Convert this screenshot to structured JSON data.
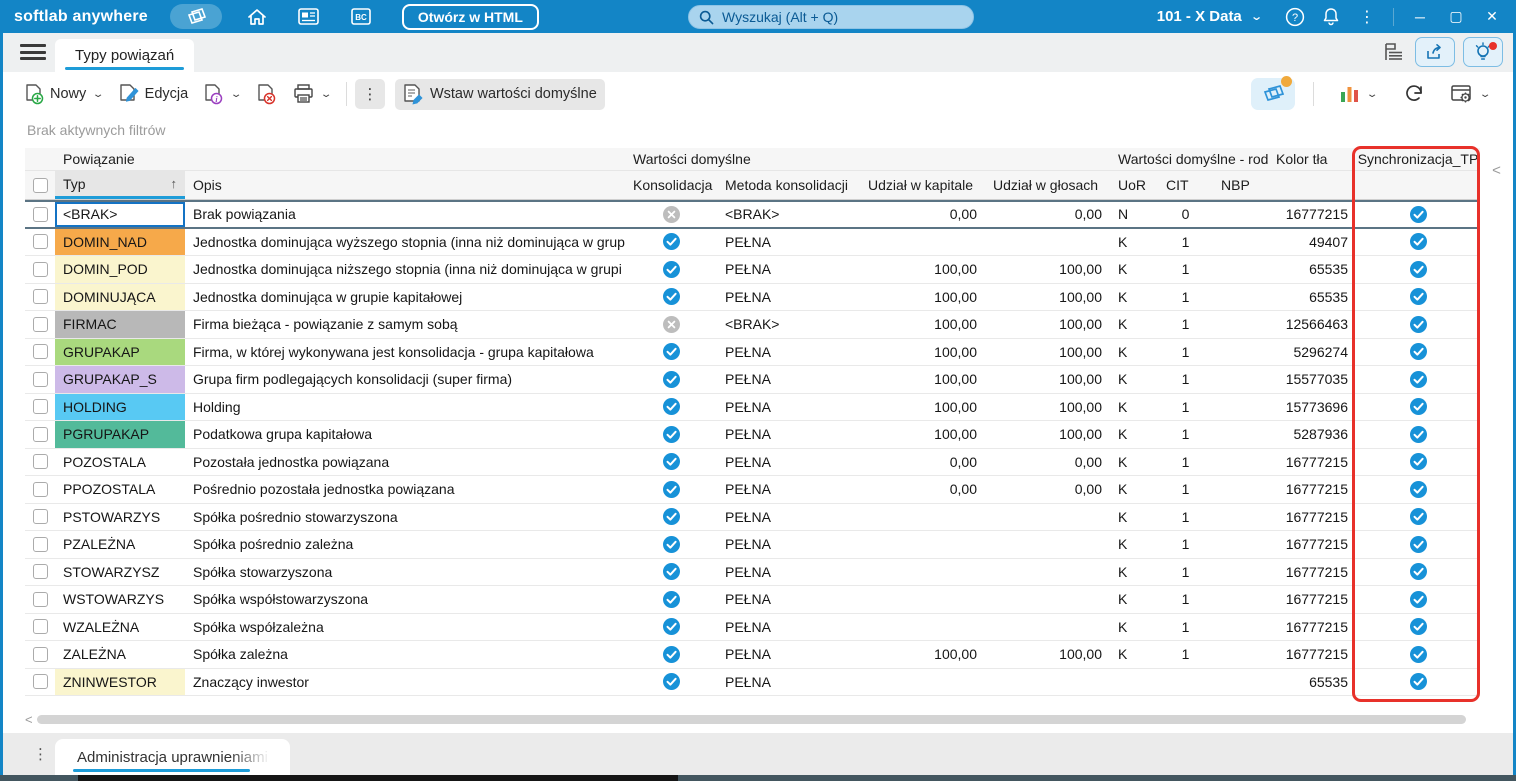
{
  "topbar": {
    "logo": "softlab anywhere",
    "open_in_html_label": "Otwórz w HTML",
    "search_placeholder": "Wyszukaj (Alt + Q)",
    "company_selector": "101 - X Data",
    "window_minimize": "─",
    "window_maximize": "▢",
    "window_close": "✕"
  },
  "tabbar": {
    "active_tab": "Typy powiązań"
  },
  "toolbar": {
    "new_label": "Nowy",
    "edit_label": "Edycja",
    "insert_defaults_label": "Wstaw wartości domyślne"
  },
  "filter_status": "Brak aktywnych filtrów",
  "colors": {
    "accent_blue": "#1385c6",
    "check_blue": "#1792d8",
    "cross_gray": "#bdbdbd",
    "annotation_red": "#e8312a",
    "tab_underline": "#1e9cd8"
  },
  "table": {
    "group_headers": {
      "powiazanie": "Powiązanie",
      "wartosci_domyslne": "Wartości domyślne",
      "wartosci_domyslne_rod": "Wartości domyślne - rod",
      "kolor_tla": "Kolor tła",
      "synchronizacja_tp": "Synchronizacja_TP"
    },
    "columns": {
      "typ": "Typ",
      "opis": "Opis",
      "konsolidacja": "Konsolidacja",
      "metoda": "Metoda konsolidacji",
      "udzial_kapital": "Udział w kapitale",
      "udzial_glosy": "Udział w głosach",
      "uor": "UoR",
      "cit": "CIT",
      "nbp": "NBP"
    },
    "sort_indicator": "↑",
    "rows": [
      {
        "typ": "<BRAK>",
        "typ_color": "#ffffff",
        "opis": "Brak powiązania",
        "konsolidacja": "crossed",
        "metoda": "<BRAK>",
        "udzial_kapital": "0,00",
        "udzial_glosy": "0,00",
        "uor": "N",
        "cit": "0",
        "nbp": "",
        "kolor_tla": "16777215",
        "synchronizacja": "checked",
        "selected": true
      },
      {
        "typ": "DOMIN_NAD",
        "typ_color": "#f6a94a",
        "opis": "Jednostka dominująca wyższego stopnia (inna niż dominująca w grup",
        "konsolidacja": "checked",
        "metoda": "PEŁNA",
        "udzial_kapital": "",
        "udzial_glosy": "",
        "uor": "K",
        "cit": "1",
        "nbp": "",
        "kolor_tla": "49407",
        "synchronizacja": "checked"
      },
      {
        "typ": "DOMIN_POD",
        "typ_color": "#faf5ce",
        "opis": "Jednostka dominująca niższego stopnia (inna niż dominująca w grupi",
        "konsolidacja": "checked",
        "metoda": "PEŁNA",
        "udzial_kapital": "100,00",
        "udzial_glosy": "100,00",
        "uor": "K",
        "cit": "1",
        "nbp": "",
        "kolor_tla": "65535",
        "synchronizacja": "checked"
      },
      {
        "typ": "DOMINUJĄCA",
        "typ_color": "#faf5ce",
        "opis": "Jednostka dominująca w grupie kapitałowej",
        "konsolidacja": "checked",
        "metoda": "PEŁNA",
        "udzial_kapital": "100,00",
        "udzial_glosy": "100,00",
        "uor": "K",
        "cit": "1",
        "nbp": "",
        "kolor_tla": "65535",
        "synchronizacja": "checked"
      },
      {
        "typ": "FIRMAC",
        "typ_color": "#b8b8b8",
        "opis": "Firma bieżąca - powiązanie z samym sobą",
        "konsolidacja": "crossed",
        "metoda": "<BRAK>",
        "udzial_kapital": "100,00",
        "udzial_glosy": "100,00",
        "uor": "K",
        "cit": "1",
        "nbp": "",
        "kolor_tla": "12566463",
        "synchronizacja": "checked"
      },
      {
        "typ": "GRUPAKAP",
        "typ_color": "#a9d97e",
        "opis": "Firma, w której wykonywana jest konsolidacja  - grupa kapitałowa",
        "konsolidacja": "checked",
        "metoda": "PEŁNA",
        "udzial_kapital": "100,00",
        "udzial_glosy": "100,00",
        "uor": "K",
        "cit": "1",
        "nbp": "",
        "kolor_tla": "5296274",
        "synchronizacja": "checked"
      },
      {
        "typ": "GRUPAKAP_S",
        "typ_color": "#cdbae8",
        "opis": "Grupa firm podlegających konsolidacji (super firma)",
        "konsolidacja": "checked",
        "metoda": "PEŁNA",
        "udzial_kapital": "100,00",
        "udzial_glosy": "100,00",
        "uor": "K",
        "cit": "1",
        "nbp": "",
        "kolor_tla": "15577035",
        "synchronizacja": "checked"
      },
      {
        "typ": "HOLDING",
        "typ_color": "#58c9f3",
        "opis": "Holding",
        "konsolidacja": "checked",
        "metoda": "PEŁNA",
        "udzial_kapital": "100,00",
        "udzial_glosy": "100,00",
        "uor": "K",
        "cit": "1",
        "nbp": "",
        "kolor_tla": "15773696",
        "synchronizacja": "checked"
      },
      {
        "typ": "PGRUPAKAP",
        "typ_color": "#53ba9a",
        "opis": "Podatkowa grupa kapitałowa",
        "konsolidacja": "checked",
        "metoda": "PEŁNA",
        "udzial_kapital": "100,00",
        "udzial_glosy": "100,00",
        "uor": "K",
        "cit": "1",
        "nbp": "",
        "kolor_tla": "5287936",
        "synchronizacja": "checked"
      },
      {
        "typ": "POZOSTALA",
        "typ_color": "#ffffff",
        "opis": "Pozostała jednostka powiązana",
        "konsolidacja": "checked",
        "metoda": "PEŁNA",
        "udzial_kapital": "0,00",
        "udzial_glosy": "0,00",
        "uor": "K",
        "cit": "1",
        "nbp": "",
        "kolor_tla": "16777215",
        "synchronizacja": "checked"
      },
      {
        "typ": "PPOZOSTALA",
        "typ_color": "#ffffff",
        "opis": "Pośrednio  pozostała jednostka powiązana",
        "konsolidacja": "checked",
        "metoda": "PEŁNA",
        "udzial_kapital": "0,00",
        "udzial_glosy": "0,00",
        "uor": "K",
        "cit": "1",
        "nbp": "",
        "kolor_tla": "16777215",
        "synchronizacja": "checked"
      },
      {
        "typ": "PSTOWARZYS",
        "typ_color": "#ffffff",
        "opis": "Spółka pośrednio stowarzyszona",
        "konsolidacja": "checked",
        "metoda": "PEŁNA",
        "udzial_kapital": "",
        "udzial_glosy": "",
        "uor": "K",
        "cit": "1",
        "nbp": "",
        "kolor_tla": "16777215",
        "synchronizacja": "checked"
      },
      {
        "typ": "PZALEŻNA",
        "typ_color": "#ffffff",
        "opis": "Spółka pośrednio zależna",
        "konsolidacja": "checked",
        "metoda": "PEŁNA",
        "udzial_kapital": "",
        "udzial_glosy": "",
        "uor": "K",
        "cit": "1",
        "nbp": "",
        "kolor_tla": "16777215",
        "synchronizacja": "checked"
      },
      {
        "typ": "STOWARZYSZ",
        "typ_color": "#ffffff",
        "opis": "Spółka stowarzyszona",
        "konsolidacja": "checked",
        "metoda": "PEŁNA",
        "udzial_kapital": "",
        "udzial_glosy": "",
        "uor": "K",
        "cit": "1",
        "nbp": "",
        "kolor_tla": "16777215",
        "synchronizacja": "checked"
      },
      {
        "typ": "WSTOWARZYS",
        "typ_color": "#ffffff",
        "opis": "Spółka współstowarzyszona",
        "konsolidacja": "checked",
        "metoda": "PEŁNA",
        "udzial_kapital": "",
        "udzial_glosy": "",
        "uor": "K",
        "cit": "1",
        "nbp": "",
        "kolor_tla": "16777215",
        "synchronizacja": "checked"
      },
      {
        "typ": "WZALEŻNA",
        "typ_color": "#ffffff",
        "opis": "Spółka współzależna",
        "konsolidacja": "checked",
        "metoda": "PEŁNA",
        "udzial_kapital": "",
        "udzial_glosy": "",
        "uor": "K",
        "cit": "1",
        "nbp": "",
        "kolor_tla": "16777215",
        "synchronizacja": "checked"
      },
      {
        "typ": "ZALEŻNA",
        "typ_color": "#ffffff",
        "opis": "Spółka zależna",
        "konsolidacja": "checked",
        "metoda": "PEŁNA",
        "udzial_kapital": "100,00",
        "udzial_glosy": "100,00",
        "uor": "K",
        "cit": "1",
        "nbp": "",
        "kolor_tla": "16777215",
        "synchronizacja": "checked"
      },
      {
        "typ": "ZNINWESTOR",
        "typ_color": "#faf5ce",
        "opis": "Znaczący inwestor",
        "konsolidacja": "checked",
        "metoda": "PEŁNA",
        "udzial_kapital": "",
        "udzial_glosy": "",
        "uor": "",
        "cit": "",
        "nbp": "",
        "kolor_tla": "65535",
        "synchronizacja": "checked"
      }
    ]
  },
  "bottombar": {
    "tab": "Administracja uprawnieniami"
  }
}
